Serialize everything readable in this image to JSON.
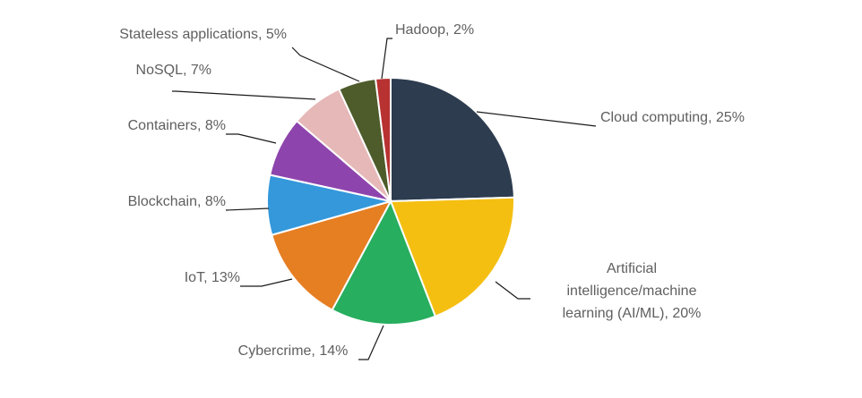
{
  "chart_data": {
    "type": "pie",
    "title": "",
    "slices": [
      {
        "label": "Cloud computing, 25%",
        "name": "Cloud computing",
        "value": 25,
        "color": "#2d3c4f"
      },
      {
        "label": "Artificial intelligence/machine learning (AI/ML), 20%",
        "name": "Artificial intelligence/machine learning (AI/ML)",
        "value": 20,
        "color": "#f5bf12"
      },
      {
        "label": "Cybercrime, 14%",
        "name": "Cybercrime",
        "value": 14,
        "color": "#27ae5e"
      },
      {
        "label": "IoT, 13%",
        "name": "IoT",
        "value": 13,
        "color": "#e67e22"
      },
      {
        "label": "Blockchain, 8%",
        "name": "Blockchain",
        "value": 8,
        "color": "#3498db"
      },
      {
        "label": "Containers, 8%",
        "name": "Containers",
        "value": 8,
        "color": "#8e44ad"
      },
      {
        "label": "NoSQL, 7%",
        "name": "NoSQL",
        "value": 7,
        "color": "#e6b8b8"
      },
      {
        "label": "Stateless applications, 5%",
        "name": "Stateless applications",
        "value": 5,
        "color": "#4e5b2a"
      },
      {
        "label": "Hadoop, 2%",
        "name": "Hadoop",
        "value": 2,
        "color": "#b83232"
      }
    ],
    "legend": "none",
    "label_placement": "outside with leader lines"
  }
}
